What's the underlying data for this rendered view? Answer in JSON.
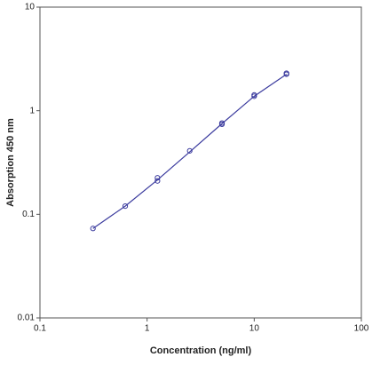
{
  "chart_data": {
    "type": "scatter",
    "x_label": "Concentration (ng/ml)",
    "y_label": "Absorption 450 nm",
    "xscale": "log",
    "yscale": "log",
    "xlim": [
      0.1,
      100
    ],
    "xticks": [
      0.1,
      1,
      10,
      100
    ],
    "ylim": [
      0.01,
      10
    ],
    "yticks": [
      0.01,
      0.1,
      1,
      10
    ],
    "series": [
      {
        "mode": "markers",
        "color": "#3b3b9e",
        "x": [
          0.3125,
          0.625,
          1.25,
          1.25,
          2.5,
          5,
          5,
          10,
          10,
          20,
          20
        ],
        "values": [
          0.073,
          0.12,
          0.21,
          0.225,
          0.41,
          0.74,
          0.76,
          1.38,
          1.42,
          2.25,
          2.3
        ]
      },
      {
        "mode": "line",
        "color": "#3b3b9e",
        "x": [
          0.3125,
          0.625,
          1.25,
          2.5,
          5,
          10,
          20
        ],
        "values": [
          0.073,
          0.12,
          0.215,
          0.4,
          0.75,
          1.38,
          2.25
        ]
      }
    ]
  }
}
